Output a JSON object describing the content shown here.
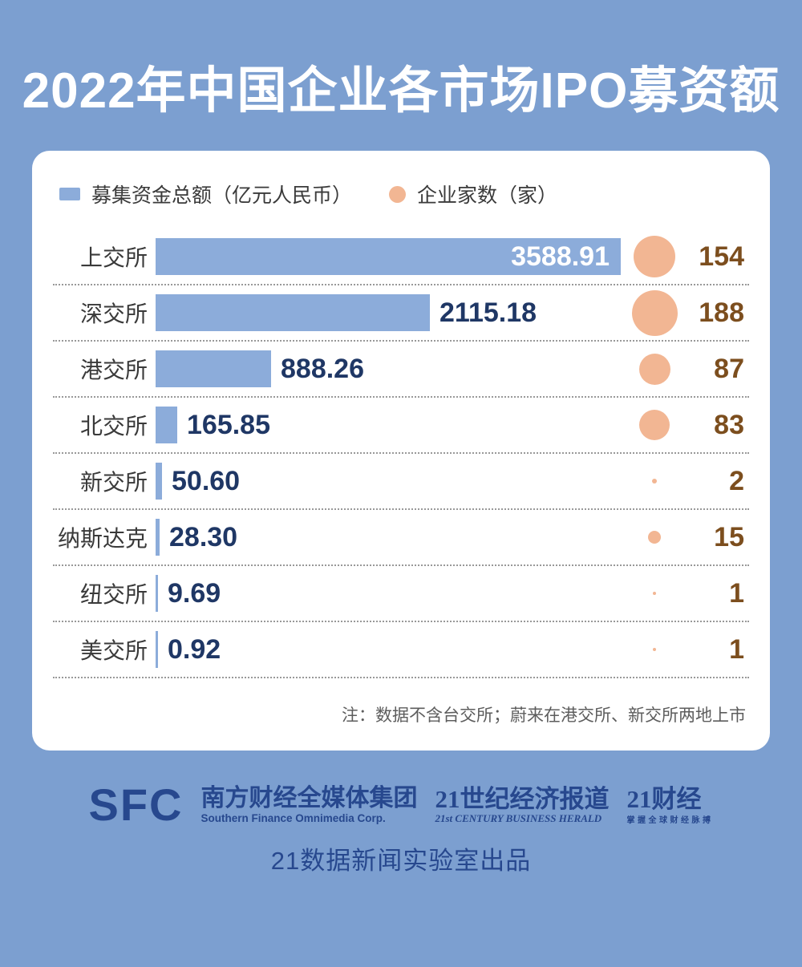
{
  "title": "2022年中国企业各市场IPO募资额",
  "legend": {
    "funding_label": "募集资金总额（亿元人民币）",
    "count_label": "企业家数（家）"
  },
  "chart_data": {
    "type": "bar",
    "orientation": "horizontal",
    "title": "2022年中国企业各市场IPO募资额",
    "categories": [
      "上交所",
      "深交所",
      "港交所",
      "北交所",
      "新交所",
      "纳斯达克",
      "纽交所",
      "美交所"
    ],
    "series": [
      {
        "name": "募集资金总额（亿元人民币）",
        "values": [
          3588.91,
          2115.18,
          888.26,
          165.85,
          50.6,
          28.3,
          9.69,
          0.92
        ],
        "labels": [
          "3588.91",
          "2115.18",
          "888.26",
          "165.85",
          "50.60",
          "28.30",
          "9.69",
          "0.92"
        ],
        "representation": "horizontal-bar"
      },
      {
        "name": "企业家数（家）",
        "values": [
          154,
          188,
          87,
          83,
          2,
          15,
          1,
          1
        ],
        "labels": [
          "154",
          "188",
          "87",
          "83",
          "2",
          "15",
          "1",
          "1"
        ],
        "representation": "bubble-area"
      }
    ],
    "xlim": [
      0,
      3700
    ],
    "grid": false,
    "legend_position": "top",
    "note": "注：数据不含台交所；蔚来在港交所、新交所两地上市"
  },
  "note": "注：数据不含台交所；蔚来在港交所、新交所两地上市",
  "footer": {
    "sfc": "SFC",
    "group_cn": "南方财经全媒体集团",
    "group_en": "Southern Finance Omnimedia Corp.",
    "herald_cn": "21世纪经济报道",
    "herald_en": "21st CENTURY BUSINESS HERALD",
    "cj_cn": "21财经",
    "cj_sub": "掌握全球财经脉搏",
    "produced_by": "21数据新闻实验室出品"
  },
  "colors": {
    "background": "#7C9FD0",
    "card": "#FFFFFF",
    "bar": "#8CACDA",
    "bubble": "#F2B693",
    "value_text": "#1F3765",
    "count_text": "#7C4E1E",
    "label_text": "#3A3A3A",
    "title_text": "#FFFFFF",
    "note_text": "#5D5D5D",
    "footer_text": "#27488E",
    "separator": "#999999"
  }
}
